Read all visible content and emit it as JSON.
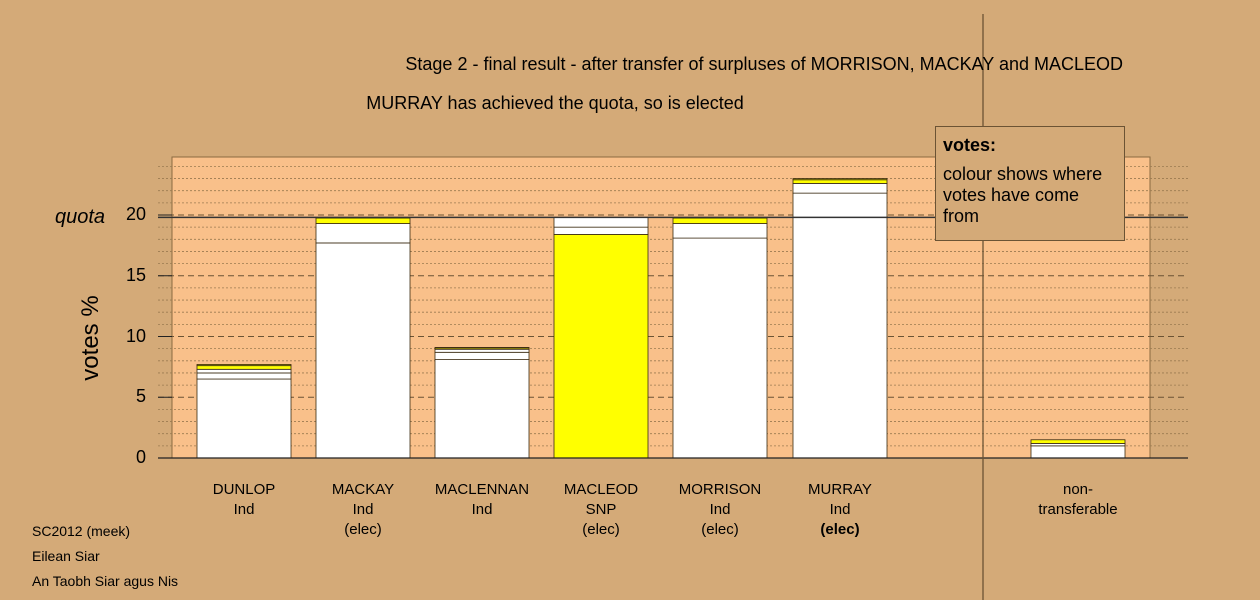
{
  "title": "Stage 2 - final result - after transfer of surpluses of MORRISON, MACKAY and MACLEOD",
  "subtitle": "MURRAY has achieved the quota, so is elected",
  "quota_label": "quota",
  "legend": {
    "title": "votes:",
    "text": "colour shows where votes have come from"
  },
  "footer": [
    "SC2012 (meek)",
    "Eilean Siar",
    "An Taobh Siar agus Nis"
  ],
  "colors": {
    "background": "#d4aa78",
    "plot_area": "#f9c08a",
    "white": "#ffffff",
    "snp_yellow": "#ffff00",
    "dark_yellow": "#c8c800"
  },
  "chart_data": {
    "type": "bar",
    "stacked": true,
    "ylabel": "votes %",
    "ylim": [
      0,
      25
    ],
    "yticks": [
      0,
      5,
      10,
      15,
      20
    ],
    "quota": 19.8,
    "categories": [
      {
        "name": "DUNLOP",
        "party": "Ind",
        "status": "",
        "segments": [
          {
            "value": 6.5,
            "color": "#ffffff"
          },
          {
            "value": 0.5,
            "color": "#ffffff"
          },
          {
            "value": 0.3,
            "color": "#ffffff"
          },
          {
            "value": 0.3,
            "color": "#ffff00"
          },
          {
            "value": 0.1,
            "color": "#c8c800"
          }
        ]
      },
      {
        "name": "MACKAY",
        "party": "Ind",
        "status": "(elec)",
        "segments": [
          {
            "value": 17.7,
            "color": "#ffffff"
          },
          {
            "value": 1.6,
            "color": "#ffffff"
          },
          {
            "value": 0.45,
            "color": "#ffff00"
          },
          {
            "value": 0.05,
            "color": "#c8c800"
          }
        ]
      },
      {
        "name": "MACLENNAN",
        "party": "Ind",
        "status": "",
        "segments": [
          {
            "value": 8.1,
            "color": "#ffffff"
          },
          {
            "value": 0.6,
            "color": "#ffffff"
          },
          {
            "value": 0.25,
            "color": "#ffffff"
          },
          {
            "value": 0.1,
            "color": "#ffff00"
          },
          {
            "value": 0.05,
            "color": "#c8c800"
          }
        ]
      },
      {
        "name": "MACLEOD",
        "party": "SNP",
        "status": "(elec)",
        "segments": [
          {
            "value": 18.4,
            "color": "#ffff00"
          },
          {
            "value": 0.6,
            "color": "#ffffff"
          },
          {
            "value": 0.8,
            "color": "#ffffff"
          }
        ]
      },
      {
        "name": "MORRISON",
        "party": "Ind",
        "status": "(elec)",
        "segments": [
          {
            "value": 18.1,
            "color": "#ffffff"
          },
          {
            "value": 1.2,
            "color": "#ffffff"
          },
          {
            "value": 0.45,
            "color": "#ffff00"
          },
          {
            "value": 0.05,
            "color": "#c8c800"
          }
        ]
      },
      {
        "name": "MURRAY",
        "party": "Ind",
        "status": "(elec)",
        "status_bold": true,
        "segments": [
          {
            "value": 21.8,
            "color": "#ffffff"
          },
          {
            "value": 0.8,
            "color": "#ffffff"
          },
          {
            "value": 0.3,
            "color": "#ffff00"
          },
          {
            "value": 0.1,
            "color": "#c8c800"
          }
        ]
      },
      {
        "name": "non-\ntransferable",
        "party": "",
        "status": "",
        "segments": [
          {
            "value": 1.0,
            "color": "#ffffff"
          },
          {
            "value": 0.2,
            "color": "#ffffff"
          },
          {
            "value": 0.3,
            "color": "#ffff00"
          }
        ]
      }
    ],
    "y_axis_labels": [
      "0",
      "5",
      "10",
      "15",
      "20"
    ]
  }
}
